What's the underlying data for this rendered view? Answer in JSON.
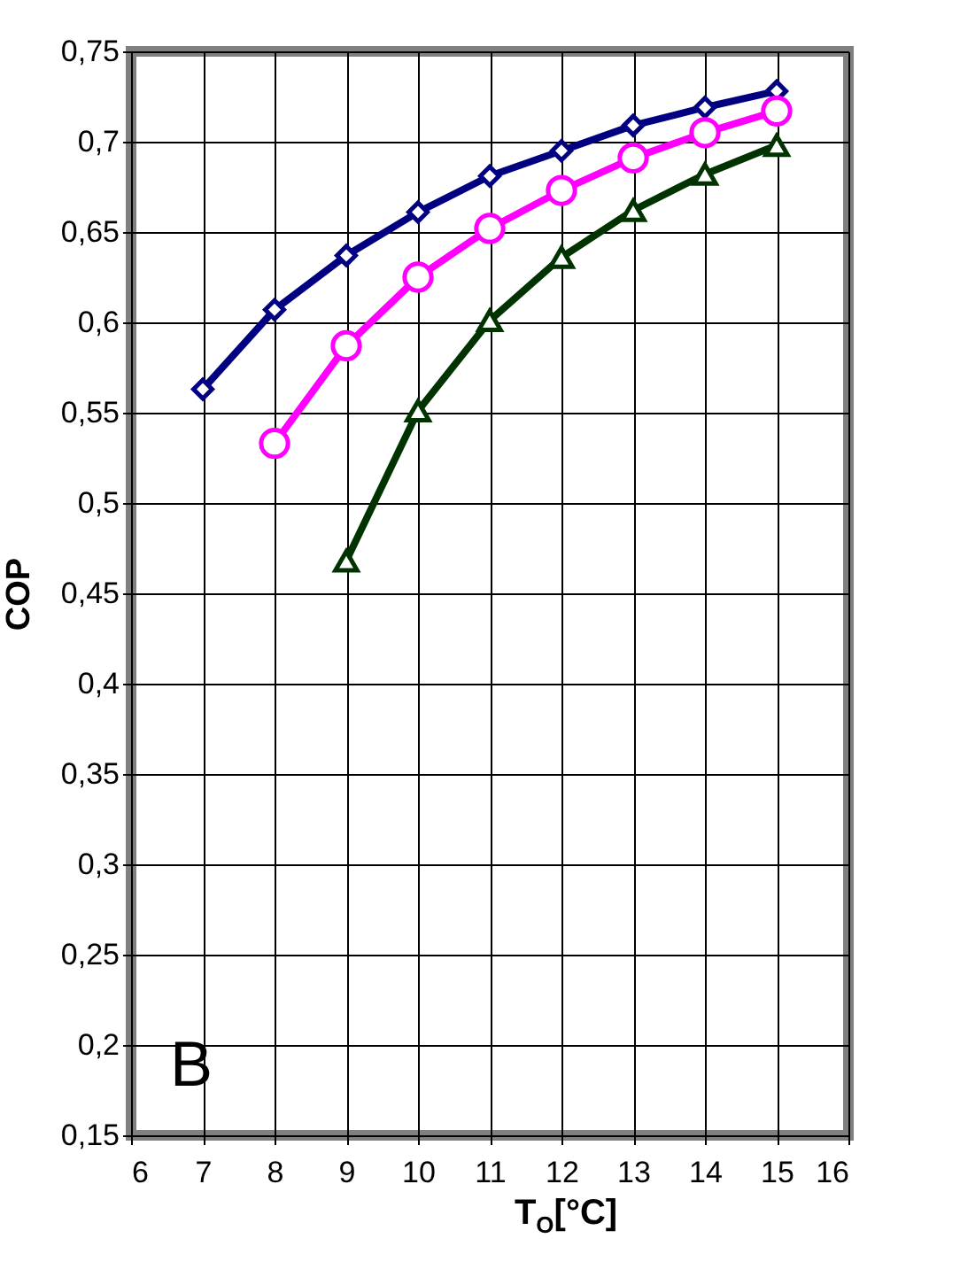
{
  "chart_data": {
    "type": "line",
    "xlabel": "T$_{O}$[°C]",
    "ylabel": "COP",
    "annotations": [
      "B"
    ],
    "xlim": [
      6,
      16
    ],
    "xticks": [
      6,
      7,
      8,
      9,
      10,
      11,
      12,
      13,
      14,
      15,
      16
    ],
    "ylim": [
      0.15,
      0.75
    ],
    "yticks": [
      {
        "value": 0.15,
        "label": "0,15"
      },
      {
        "value": 0.2,
        "label": "0,2"
      },
      {
        "value": 0.25,
        "label": "0,25"
      },
      {
        "value": 0.3,
        "label": "0,3"
      },
      {
        "value": 0.35,
        "label": "0,35"
      },
      {
        "value": 0.4,
        "label": "0,4"
      },
      {
        "value": 0.45,
        "label": "0,45"
      },
      {
        "value": 0.5,
        "label": "0,5"
      },
      {
        "value": 0.55,
        "label": "0,55"
      },
      {
        "value": 0.6,
        "label": "0,6"
      },
      {
        "value": 0.65,
        "label": "0,65"
      },
      {
        "value": 0.7,
        "label": "0,7"
      },
      {
        "value": 0.75,
        "label": "0,75"
      }
    ],
    "grid": true,
    "series": [
      {
        "color": "#000080",
        "marker": "diamond",
        "x": [
          7,
          8,
          9,
          10,
          11,
          12,
          13,
          14,
          15
        ],
        "values": [
          0.563,
          0.607,
          0.637,
          0.661,
          0.681,
          0.695,
          0.709,
          0.719,
          0.728
        ]
      },
      {
        "color": "#ff00ff",
        "marker": "circle",
        "x": [
          8,
          9,
          10,
          11,
          12,
          13,
          14,
          15
        ],
        "values": [
          0.533,
          0.587,
          0.625,
          0.652,
          0.673,
          0.691,
          0.705,
          0.717
        ]
      },
      {
        "color": "#003300",
        "marker": "triangle",
        "x": [
          9,
          10,
          11,
          12,
          13,
          14,
          15
        ],
        "values": [
          0.468,
          0.551,
          0.601,
          0.636,
          0.662,
          0.682,
          0.698
        ]
      }
    ]
  }
}
